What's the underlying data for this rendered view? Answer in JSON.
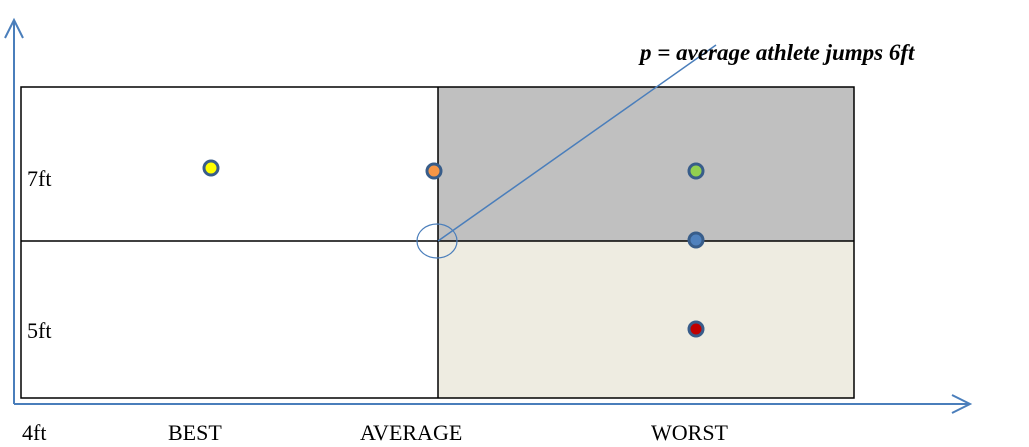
{
  "annotation": "p = average athlete jumps 6ft",
  "row_labels": {
    "top": "7ft",
    "bottom": "5ft"
  },
  "column_labels": [
    "4ft",
    "BEST",
    "AVERAGE",
    "WORST"
  ],
  "colors": {
    "axis": "#4a7ebb",
    "grid_line": "#000000",
    "shade_top_right": "#c0c0c0",
    "shade_bottom_right": "#eeece1",
    "dot_border": "#385d8a"
  },
  "points": [
    {
      "name": "point-yellow",
      "fill": "#ffff00"
    },
    {
      "name": "point-orange",
      "fill": "#f79646"
    },
    {
      "name": "point-green",
      "fill": "#92d050"
    },
    {
      "name": "point-blue",
      "fill": "#4f81bd"
    },
    {
      "name": "point-red",
      "fill": "#c00000"
    }
  ]
}
